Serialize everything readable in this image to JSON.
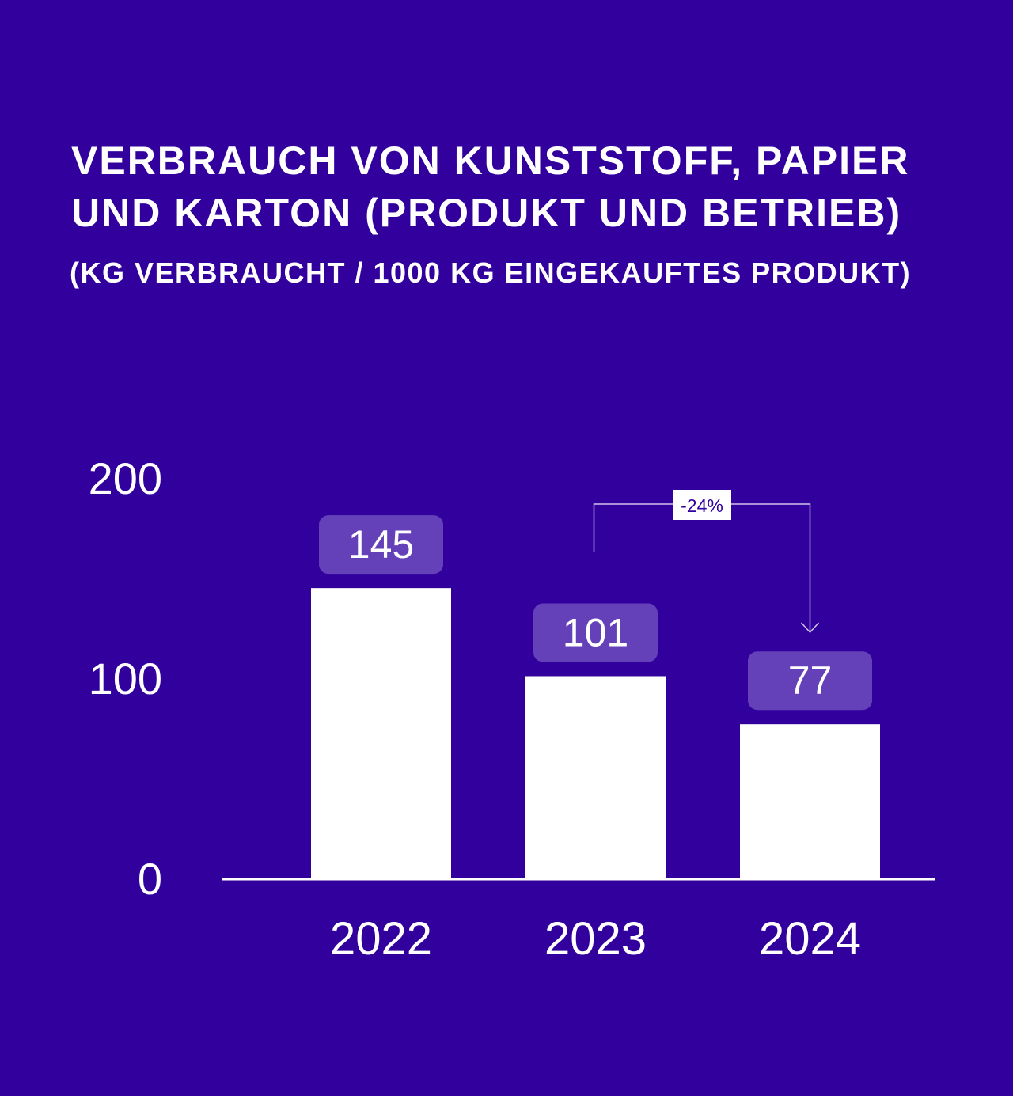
{
  "chart_data": {
    "type": "bar",
    "title": "VERBRAUCH VON KUNSTSTOFF, PAPIER UND KARTON (PRODUKT UND BETRIEB)",
    "subtitle": "(KG VERBRAUCHT / 1000 KG EINGEKAUFTES PRODUKT)",
    "categories": [
      "2022",
      "2023",
      "2024"
    ],
    "values": [
      145,
      101,
      77
    ],
    "data_labels": [
      "145",
      "101",
      "77"
    ],
    "yticks": [
      "0",
      "100",
      "200"
    ],
    "ylim": [
      0,
      200
    ],
    "xlabel": "",
    "ylabel": "",
    "grid": false,
    "annotation": {
      "text": "-24%",
      "from": "2023",
      "to": "2024"
    },
    "colors": {
      "background": "#32009c",
      "bar": "#ffffff",
      "label_box": "#6541b9",
      "text": "#ffffff",
      "annotation_text": "#32009c"
    }
  }
}
